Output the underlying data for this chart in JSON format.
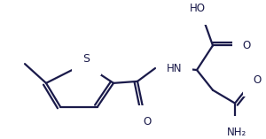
{
  "bg_color": "#ffffff",
  "line_color": "#1a1a4a",
  "line_width": 1.6,
  "font_size": 8.5,
  "fig_width": 3.0,
  "fig_height": 1.57,
  "dpi": 100,
  "xlim": [
    0,
    300
  ],
  "ylim": [
    0,
    157
  ]
}
